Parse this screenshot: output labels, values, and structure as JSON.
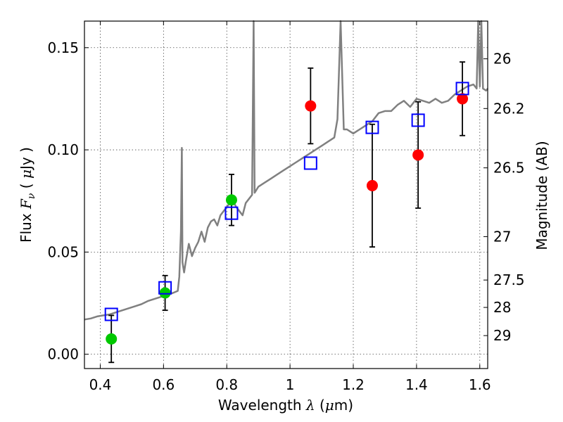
{
  "chart_data": {
    "type": "scatter",
    "xlabel": "Wavelength  λ (μm)",
    "ylabel": "Flux  F_ν  ( μJy )",
    "y2label": "Magnitude (AB)",
    "xlim": [
      0.35,
      1.625
    ],
    "ylim": [
      -0.007,
      0.163
    ],
    "x_ticks": [
      0.4,
      0.6,
      0.8,
      1.0,
      1.2,
      1.4,
      1.6
    ],
    "x_tick_labels": [
      "0.4",
      "0.6",
      "0.8",
      "1",
      "1.2",
      "1.4",
      "1.6"
    ],
    "y_ticks": [
      0.0,
      0.05,
      0.1,
      0.15
    ],
    "y_tick_labels": [
      "0.00",
      "0.05",
      "0.10",
      "0.15"
    ],
    "y2_ticks": [
      26,
      26.2,
      26.5,
      27,
      27.5,
      28,
      29
    ],
    "y2_tick_labels": [
      "26",
      "26.2",
      "26.5",
      "27",
      "27.5",
      "28",
      "29"
    ],
    "grid": true,
    "series": [
      {
        "kind": "line",
        "color": "#808080",
        "x": [
          0.35,
          0.37,
          0.39,
          0.41,
          0.43,
          0.45,
          0.47,
          0.49,
          0.51,
          0.53,
          0.55,
          0.57,
          0.59,
          0.61,
          0.63,
          0.645,
          0.65,
          0.655,
          0.658,
          0.66,
          0.665,
          0.67,
          0.68,
          0.69,
          0.7,
          0.71,
          0.72,
          0.73,
          0.74,
          0.75,
          0.76,
          0.77,
          0.78,
          0.79,
          0.8,
          0.81,
          0.82,
          0.83,
          0.84,
          0.85,
          0.86,
          0.87,
          0.88,
          0.885,
          0.888,
          0.892,
          0.9,
          0.92,
          0.94,
          0.96,
          0.98,
          1.0,
          1.02,
          1.04,
          1.06,
          1.08,
          1.1,
          1.12,
          1.14,
          1.15,
          1.16,
          1.17,
          1.18,
          1.2,
          1.22,
          1.24,
          1.26,
          1.28,
          1.3,
          1.32,
          1.34,
          1.36,
          1.38,
          1.4,
          1.42,
          1.44,
          1.46,
          1.48,
          1.5,
          1.52,
          1.54,
          1.56,
          1.58,
          1.59,
          1.595,
          1.6,
          1.605,
          1.61,
          1.62,
          1.625
        ],
        "y": [
          0.017,
          0.0175,
          0.0185,
          0.019,
          0.0195,
          0.0205,
          0.0215,
          0.0225,
          0.0235,
          0.0245,
          0.026,
          0.027,
          0.028,
          0.029,
          0.03,
          0.031,
          0.038,
          0.06,
          0.101,
          0.045,
          0.04,
          0.045,
          0.054,
          0.048,
          0.052,
          0.055,
          0.06,
          0.055,
          0.062,
          0.065,
          0.066,
          0.063,
          0.068,
          0.07,
          0.072,
          0.074,
          0.075,
          0.072,
          0.07,
          0.068,
          0.074,
          0.076,
          0.078,
          0.163,
          0.079,
          0.08,
          0.082,
          0.084,
          0.086,
          0.088,
          0.09,
          0.092,
          0.094,
          0.096,
          0.098,
          0.1,
          0.102,
          0.104,
          0.106,
          0.115,
          0.163,
          0.11,
          0.11,
          0.108,
          0.11,
          0.112,
          0.114,
          0.118,
          0.119,
          0.119,
          0.122,
          0.124,
          0.121,
          0.125,
          0.124,
          0.123,
          0.125,
          0.123,
          0.124,
          0.127,
          0.129,
          0.131,
          0.132,
          0.13,
          0.163,
          0.131,
          0.163,
          0.13,
          0.129,
          0.13
        ]
      },
      {
        "kind": "points",
        "marker": "circle",
        "color": "#00c800",
        "x": [
          0.435,
          0.605,
          0.815
        ],
        "y": [
          0.0075,
          0.03,
          0.0755
        ],
        "err": [
          0.0115,
          0.0085,
          0.0125
        ]
      },
      {
        "kind": "points",
        "marker": "circle",
        "color": "#ff0000",
        "x": [
          1.065,
          1.26,
          1.405,
          1.545
        ],
        "y": [
          0.1215,
          0.0825,
          0.0975,
          0.125
        ],
        "err": [
          0.0185,
          0.03,
          0.026,
          0.018
        ]
      },
      {
        "kind": "points",
        "marker": "square-open",
        "color": "#0000ff",
        "x": [
          0.435,
          0.605,
          0.815,
          1.065,
          1.26,
          1.405,
          1.545
        ],
        "y": [
          0.0195,
          0.0325,
          0.069,
          0.0935,
          0.111,
          0.1145,
          0.13
        ]
      }
    ]
  }
}
